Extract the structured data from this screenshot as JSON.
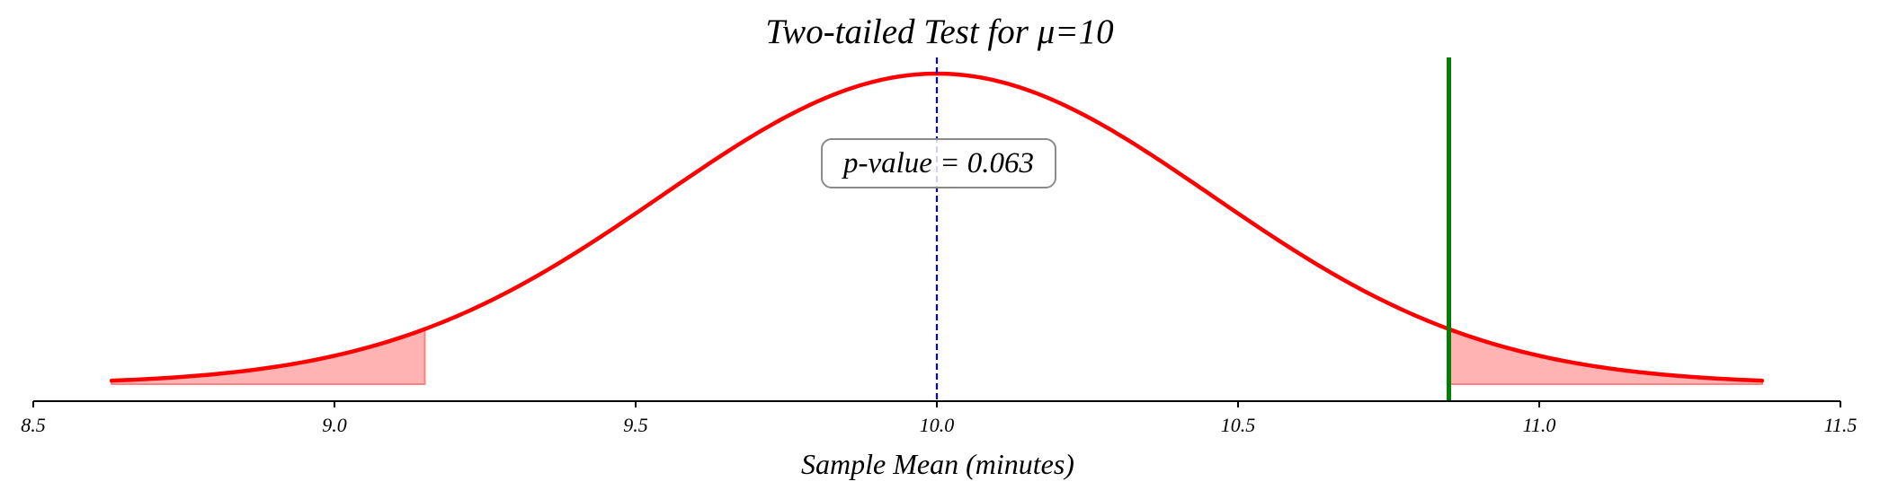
{
  "chart_data": {
    "type": "line",
    "title": "Two-tailed Test for μ=10",
    "xlabel": "Sample Mean (minutes)",
    "ylabel": "",
    "xlim": [
      8.5,
      11.5
    ],
    "x_ticks": [
      "8.5",
      "9.0",
      "9.5",
      "10.0",
      "10.5",
      "11.0",
      "11.5"
    ],
    "distribution": {
      "mean": 10.0,
      "sd": 0.457,
      "x_range": [
        8.63,
        11.37
      ]
    },
    "null_mean_line": {
      "x": 10.0,
      "style": "dashed",
      "color": "#0000ee"
    },
    "observed_statistic_line": {
      "x": 10.85,
      "color": "#008000"
    },
    "shaded_tails": [
      {
        "from": 8.63,
        "to": 9.15
      },
      {
        "from": 10.85,
        "to": 11.37
      }
    ],
    "annotation": "p-value = 0.063",
    "grid": false,
    "colors": {
      "curve": "#ff0000",
      "tail_fill": "#ffb3b3",
      "tail_edge": "#ff8080"
    }
  }
}
